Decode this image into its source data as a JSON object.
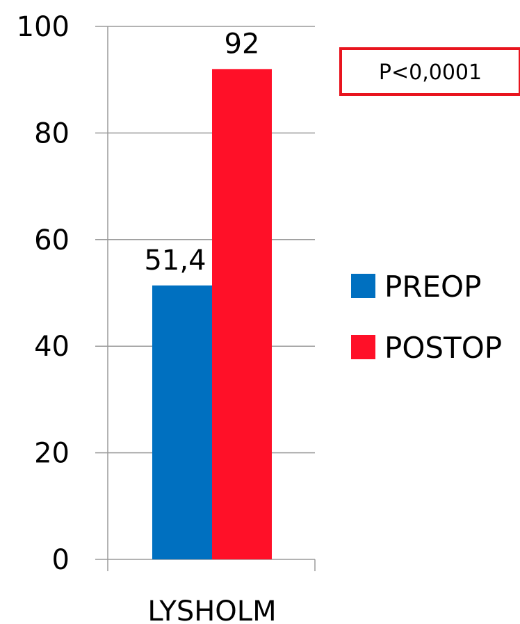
{
  "chart_data": {
    "type": "bar",
    "categories": [
      "LYSHOLM"
    ],
    "series": [
      {
        "name": "PREOP",
        "values": [
          51.4
        ],
        "value_labels": [
          "51,4"
        ],
        "color": "#0070C0"
      },
      {
        "name": "POSTOP",
        "values": [
          92
        ],
        "value_labels": [
          "92"
        ],
        "color": "#FF1028"
      }
    ],
    "title": "",
    "xlabel": "",
    "ylabel": "",
    "ylim": [
      0,
      100
    ],
    "yticks": [
      0,
      20,
      40,
      60,
      80,
      100
    ],
    "grid": true,
    "legend_position": "right",
    "annotation": {
      "text": "P<0,0001",
      "border_color": "#E8141E"
    }
  }
}
